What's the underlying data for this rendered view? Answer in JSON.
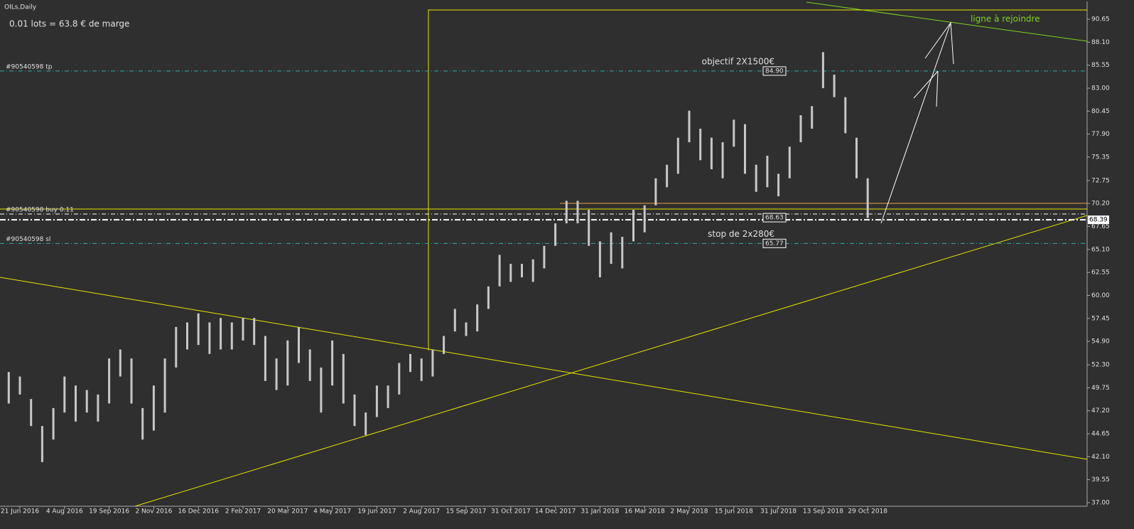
{
  "chart_data": {
    "type": "range-bar",
    "title": "OILs,Daily",
    "subtitle": "0.01 lots = 63.8 € de marge",
    "color": "#c8c8c8",
    "categories": [
      null,
      "21 Jun 2016",
      null,
      null,
      null,
      "4 Aug 2016",
      null,
      null,
      null,
      "19 Sep 2016",
      null,
      null,
      null,
      "2 Nov 2016",
      null,
      null,
      null,
      "16 Dec 2016",
      null,
      null,
      null,
      "2 Feb 2017",
      null,
      null,
      null,
      "20 Mar 2017",
      null,
      null,
      null,
      "4 May 2017",
      null,
      null,
      null,
      "19 Jun 2017",
      null,
      null,
      null,
      "2 Aug 2017",
      null,
      null,
      null,
      "15 Sep 2017",
      null,
      null,
      null,
      "31 Oct 2017",
      null,
      null,
      null,
      "14 Dec 2017",
      null,
      null,
      null,
      "31 Jan 2018",
      null,
      null,
      null,
      "16 Mar 2018",
      null,
      null,
      null,
      "2 May 2018",
      null,
      null,
      null,
      "15 Jun 2018",
      null,
      null,
      null,
      "31 Jul 2018",
      null,
      null,
      null,
      "13 Sep 2018",
      null,
      null,
      null,
      "29 Oct 2018"
    ],
    "low": [
      48,
      49,
      45.5,
      41.5,
      44,
      47,
      46,
      47,
      46,
      48,
      51,
      48,
      44,
      45,
      47,
      52,
      54,
      54.5,
      53.5,
      54,
      54,
      55,
      54.5,
      50.5,
      49.5,
      50,
      52.5,
      50.5,
      47,
      50,
      48,
      45.5,
      44.5,
      46.5,
      47.5,
      49,
      51.5,
      50.5,
      51,
      53.5,
      56,
      55.5,
      56,
      58.5,
      61,
      61.5,
      62,
      61.5,
      63,
      65.5,
      68,
      68,
      65.5,
      62,
      63.5,
      63,
      66,
      67,
      70,
      72,
      73.5,
      77,
      75,
      74,
      73,
      76.5,
      73.5,
      71.5,
      72,
      71,
      73,
      77,
      78.5,
      83,
      82,
      78,
      73,
      68.6
    ],
    "high": [
      51.5,
      51,
      48.5,
      45.5,
      47.5,
      51,
      50,
      49.5,
      49,
      53,
      54,
      53,
      47.5,
      50,
      53,
      56.5,
      57,
      58,
      57,
      57.5,
      57,
      57.5,
      57.5,
      55.5,
      53,
      55,
      56.5,
      54,
      52,
      55,
      53.5,
      49,
      47,
      50,
      50,
      52.5,
      53.5,
      53,
      54,
      55.5,
      58.5,
      57,
      59,
      61,
      64.5,
      63.5,
      63.5,
      64,
      65.5,
      68,
      70.5,
      70.5,
      69.5,
      66,
      67,
      66.5,
      69.5,
      70,
      73,
      74.5,
      77.5,
      80.5,
      78.5,
      77.5,
      77,
      79.5,
      79,
      74.5,
      75.5,
      73.5,
      76.5,
      80,
      81,
      87,
      84.5,
      82,
      77.5,
      73
    ],
    "ylim": [
      36.6,
      91.68
    ],
    "yticks": [
      90.65,
      {
        "value": 88.1,
        "label": "88.10"
      },
      85.55,
      {
        "value": 83,
        "label": "83.00"
      },
      80.45,
      {
        "value": 77.9,
        "label": "77.90"
      },
      75.35,
      72.75,
      {
        "value": 70.2,
        "label": "70.20"
      },
      67.65,
      {
        "value": 65.1,
        "label": "65.10"
      },
      62.55,
      {
        "value": 60,
        "label": "60.00"
      },
      57.45,
      {
        "value": 54.9,
        "label": "54.90"
      },
      {
        "value": 52.3,
        "label": "52.30"
      },
      49.75,
      {
        "value": 47.2,
        "label": "47.20"
      },
      44.65,
      {
        "value": 42.1,
        "label": "42.10"
      },
      39.55,
      {
        "value": 37,
        "label": "37.00"
      }
    ],
    "levels": [
      {
        "label": "#90540598 tp",
        "value": 84.9,
        "color": "#3aa6a6"
      },
      {
        "label": "#90540598 buy 0.11",
        "value": 69.03,
        "color": "#ffffff"
      },
      {
        "label": "#90540598 sl",
        "value": 65.77,
        "color": "#3aa6a6"
      }
    ],
    "current_price": {
      "value": 68.39,
      "label": "68.39"
    },
    "annotations": [
      {
        "text": "objectif 2X1500€",
        "box": "84.90",
        "value": 84.9
      },
      {
        "text": "stop de 2x280€",
        "box": "65.77",
        "value": 65.77
      },
      {
        "text": null,
        "box": "68.63",
        "value": 68.63
      }
    ],
    "target_label": "ligne à rejoindre"
  }
}
